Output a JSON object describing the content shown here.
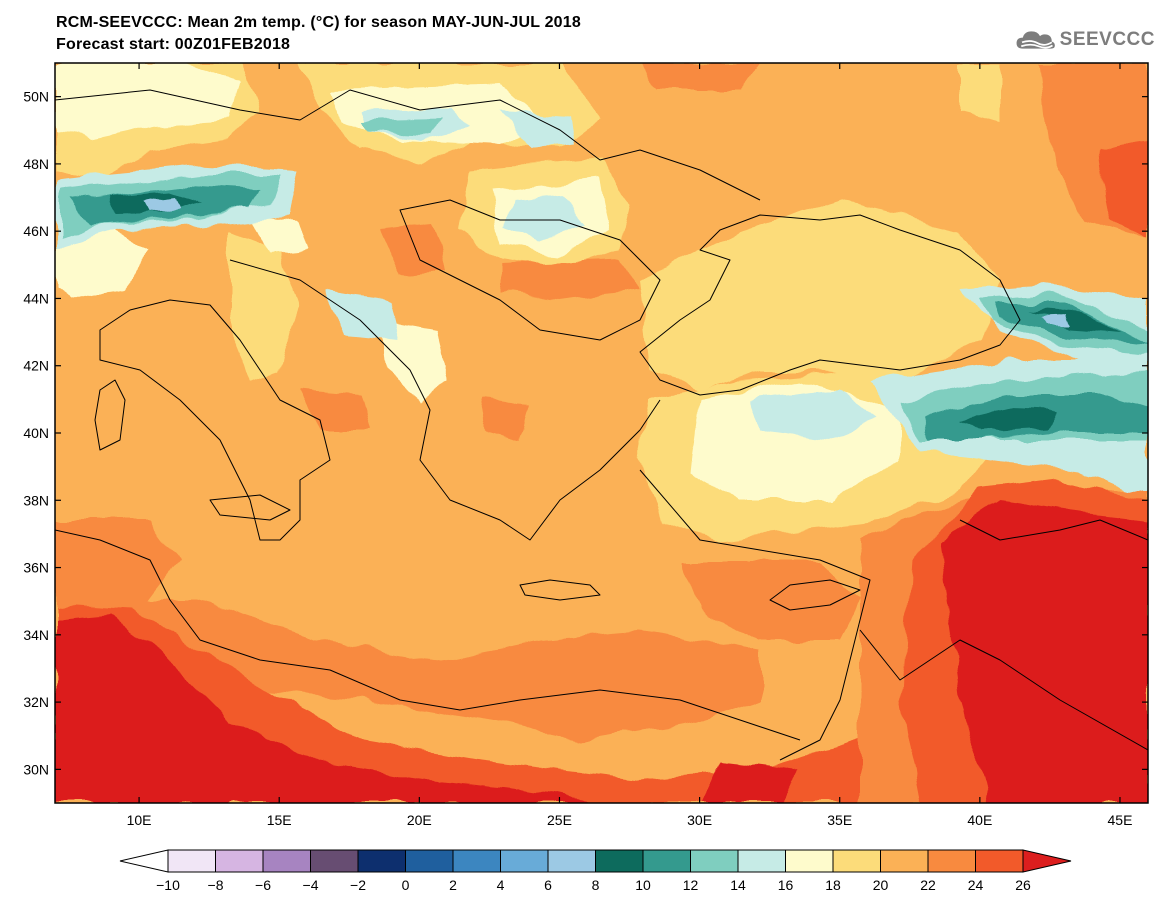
{
  "header": {
    "title_line1": "RCM-SEEVCCC: Mean 2m temp. (°C) for season MAY-JUN-JUL 2018",
    "title_line2": "Forecast start: 00Z01FEB2018",
    "logo_text": "SEEVCCC"
  },
  "map": {
    "lon_range": [
      7,
      46
    ],
    "lat_range": [
      29,
      51
    ],
    "lon_ticks": [
      {
        "value": 10,
        "label": "10E"
      },
      {
        "value": 15,
        "label": "15E"
      },
      {
        "value": 20,
        "label": "20E"
      },
      {
        "value": 25,
        "label": "25E"
      },
      {
        "value": 30,
        "label": "30E"
      },
      {
        "value": 35,
        "label": "35E"
      },
      {
        "value": 40,
        "label": "40E"
      },
      {
        "value": 45,
        "label": "45E"
      }
    ],
    "lat_ticks": [
      {
        "value": 30,
        "label": "30N"
      },
      {
        "value": 32,
        "label": "32N"
      },
      {
        "value": 34,
        "label": "34N"
      },
      {
        "value": 36,
        "label": "36N"
      },
      {
        "value": 38,
        "label": "38N"
      },
      {
        "value": 40,
        "label": "40N"
      },
      {
        "value": 42,
        "label": "42N"
      },
      {
        "value": 44,
        "label": "44N"
      },
      {
        "value": 46,
        "label": "46N"
      },
      {
        "value": 48,
        "label": "48N"
      },
      {
        "value": 50,
        "label": "50N"
      }
    ]
  },
  "legend": {
    "under_color": "#ffffff",
    "over_color": "#dc1e1e",
    "bins": [
      {
        "from": -10,
        "to": -8,
        "color": "#f1e6f6"
      },
      {
        "from": -8,
        "to": -6,
        "color": "#d6b5e2"
      },
      {
        "from": -6,
        "to": -4,
        "color": "#a784c1"
      },
      {
        "from": -4,
        "to": -2,
        "color": "#674d72"
      },
      {
        "from": -2,
        "to": 0,
        "color": "#0d2f6e"
      },
      {
        "from": 0,
        "to": 2,
        "color": "#1f5f9e"
      },
      {
        "from": 2,
        "to": 4,
        "color": "#3c86c0"
      },
      {
        "from": 4,
        "to": 6,
        "color": "#68abd8"
      },
      {
        "from": 6,
        "to": 8,
        "color": "#9cc9e4"
      },
      {
        "from": 8,
        "to": 10,
        "color": "#0d6b5d"
      },
      {
        "from": 10,
        "to": 12,
        "color": "#349a8e"
      },
      {
        "from": 12,
        "to": 14,
        "color": "#7fcebf"
      },
      {
        "from": 14,
        "to": 16,
        "color": "#c6ebe6"
      },
      {
        "from": 16,
        "to": 18,
        "color": "#fefbcc"
      },
      {
        "from": 18,
        "to": 20,
        "color": "#fcdc7a"
      },
      {
        "from": 20,
        "to": 22,
        "color": "#fbb156"
      },
      {
        "from": 22,
        "to": 24,
        "color": "#f88a3f"
      },
      {
        "from": 24,
        "to": 26,
        "color": "#f25a2a"
      }
    ],
    "labels": [
      "−10",
      "−8",
      "−6",
      "−4",
      "−2",
      "0",
      "2",
      "4",
      "6",
      "8",
      "10",
      "12",
      "14",
      "16",
      "18",
      "20",
      "22",
      "24",
      "26"
    ]
  }
}
